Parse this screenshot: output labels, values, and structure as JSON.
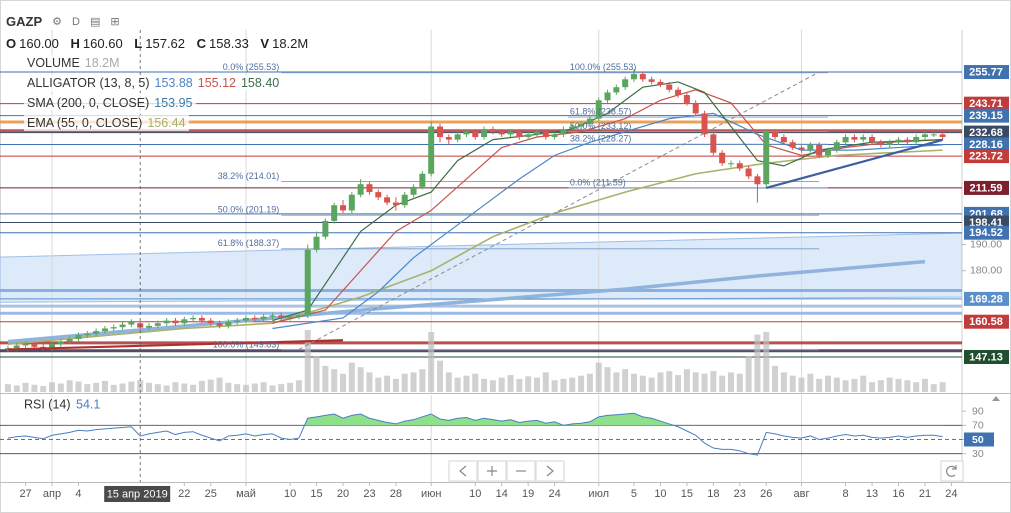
{
  "header": {
    "symbol": "GAZP",
    "interval": "D"
  },
  "legend": {
    "ohlc": [
      {
        "key": "O",
        "value": "160.00"
      },
      {
        "key": "H",
        "value": "160.60"
      },
      {
        "key": "L",
        "value": "157.62"
      },
      {
        "key": "C",
        "value": "158.33"
      },
      {
        "key": "V",
        "value": "18.2M"
      }
    ],
    "indicators": [
      {
        "name": "VOLUME",
        "values": [
          "18.2M"
        ]
      },
      {
        "name": "ALLIGATOR (13, 8, 5)",
        "values": [
          "153.88",
          "155.12",
          "158.40"
        ]
      },
      {
        "name": "SMA (200, 0, CLOSE)",
        "values": [
          "153.95"
        ]
      },
      {
        "name": "EMA (55, 0, CLOSE)",
        "values": [
          "156.44"
        ]
      }
    ]
  },
  "chart_data": [
    {
      "type": "candlestick",
      "up_color": "#5aa65e",
      "down_color": "#d9534f",
      "volume_color": "#bdbdbd",
      "xlim": [
        -0.9,
        108.2
      ],
      "ylim": [
        133.4,
        271.8
      ],
      "yticks": [
        {
          "value": 190,
          "label": "190.00"
        },
        {
          "value": 180,
          "label": "180.00"
        }
      ],
      "xticks": [
        {
          "value": 2,
          "label": "27"
        },
        {
          "value": 5,
          "label": "апр"
        },
        {
          "value": 8,
          "label": "4"
        },
        {
          "value": 20,
          "label": "22"
        },
        {
          "value": 23,
          "label": "25"
        },
        {
          "value": 27,
          "label": "май"
        },
        {
          "value": 32,
          "label": "10"
        },
        {
          "value": 35,
          "label": "15"
        },
        {
          "value": 38,
          "label": "20"
        },
        {
          "value": 41,
          "label": "23"
        },
        {
          "value": 44,
          "label": "28"
        },
        {
          "value": 48,
          "label": "июн"
        },
        {
          "value": 53,
          "label": "10"
        },
        {
          "value": 56,
          "label": "14"
        },
        {
          "value": 59,
          "label": "19"
        },
        {
          "value": 62,
          "label": "24"
        },
        {
          "value": 67,
          "label": "июл"
        },
        {
          "value": 71,
          "label": "5"
        },
        {
          "value": 74,
          "label": "10"
        },
        {
          "value": 77,
          "label": "15"
        },
        {
          "value": 80,
          "label": "18"
        },
        {
          "value": 83,
          "label": "23"
        },
        {
          "value": 86,
          "label": "26"
        },
        {
          "value": 90,
          "label": "авг"
        },
        {
          "value": 95,
          "label": "8"
        },
        {
          "value": 98,
          "label": "13"
        },
        {
          "value": 101,
          "label": "16"
        },
        {
          "value": 104,
          "label": "21"
        },
        {
          "value": 107,
          "label": "24"
        }
      ],
      "crosshair": {
        "x": 15,
        "label": "15 апр 2019"
      },
      "open": [
        150,
        150.5,
        151.5,
        152,
        151,
        150.5,
        152,
        153,
        154,
        155.5,
        156,
        157,
        158,
        158.5,
        159.5,
        160,
        158.33,
        159,
        160,
        161,
        160,
        161.5,
        162,
        161,
        160,
        159,
        160.5,
        161,
        162,
        161.5,
        162.5,
        163,
        162,
        162.5,
        163,
        188,
        193,
        199,
        205,
        203,
        209,
        213,
        210,
        208,
        206,
        205,
        209,
        212,
        217,
        235,
        231,
        230,
        232,
        233,
        231,
        234,
        233,
        232,
        233,
        231,
        232,
        233,
        231,
        232,
        234,
        235,
        236,
        238,
        245,
        248,
        250,
        253,
        255,
        253,
        252,
        251,
        249,
        247,
        244,
        240,
        232,
        225,
        221,
        221,
        219,
        216,
        213,
        233,
        231,
        229,
        227,
        226,
        228,
        224,
        226,
        229,
        231,
        230,
        231,
        229,
        228,
        229,
        230,
        229,
        231,
        232,
        232
      ],
      "high": [
        151.5,
        152.5,
        153,
        153,
        152,
        153,
        154,
        155,
        156.5,
        157,
        158,
        159,
        159.5,
        160.5,
        161.5,
        160.6,
        160,
        161,
        162,
        162,
        162.5,
        163,
        163,
        162,
        161,
        161.5,
        162,
        163,
        163,
        163.5,
        164,
        164,
        163.5,
        164,
        190,
        195,
        200,
        206,
        207,
        210,
        215,
        214,
        211,
        209,
        208,
        210,
        213,
        218,
        237,
        236,
        232,
        233,
        234,
        234,
        235,
        235,
        234,
        234,
        234,
        233,
        234,
        234,
        233,
        235,
        236,
        237,
        239,
        246,
        249,
        251,
        254,
        257,
        256,
        254,
        253,
        252,
        250,
        248,
        245,
        241,
        233,
        226,
        222,
        222,
        220,
        217,
        234,
        234,
        232,
        230,
        228,
        229,
        229,
        227,
        230,
        232,
        232,
        232,
        232,
        230,
        230,
        231,
        231,
        232,
        233,
        233,
        233
      ],
      "low": [
        149,
        149.5,
        150.5,
        150,
        149.5,
        149.5,
        151,
        152,
        153,
        154.5,
        155,
        156,
        157,
        157.5,
        158.5,
        157.62,
        157.3,
        158,
        159,
        159,
        159,
        160.5,
        160,
        159,
        158,
        158,
        159.5,
        160,
        160.5,
        160.5,
        161.5,
        161,
        161,
        161.5,
        162,
        187,
        192,
        198,
        202,
        202,
        208,
        209,
        207,
        205,
        203,
        204,
        208,
        211,
        216,
        229,
        228,
        229,
        231,
        230,
        230,
        232,
        231,
        231,
        230,
        230,
        231,
        230,
        230,
        231,
        233,
        234,
        235,
        237,
        244,
        247,
        249,
        252,
        252,
        251,
        250,
        248,
        246,
        243,
        239,
        231,
        224,
        220,
        219.5,
        218,
        215,
        206,
        212,
        230,
        228,
        226,
        225,
        225,
        223,
        223,
        225,
        228,
        229,
        229,
        228,
        227,
        227,
        228,
        228,
        228,
        230,
        231,
        230
      ],
      "close": [
        150.5,
        151.5,
        152,
        151,
        150.5,
        152,
        153,
        154,
        155.5,
        156,
        157,
        158,
        158.5,
        159.5,
        160.5,
        158.33,
        159,
        160,
        161,
        160,
        161.5,
        162,
        161,
        160,
        159,
        160.5,
        161,
        162,
        161.5,
        162.5,
        163,
        162,
        162.5,
        163,
        188,
        193,
        199,
        205,
        203,
        209,
        213,
        210,
        208,
        206,
        205,
        209,
        212,
        217,
        235,
        231,
        230,
        232,
        233,
        231,
        234,
        233,
        232,
        233,
        231,
        232,
        233,
        231,
        232,
        234,
        235,
        236,
        238,
        245,
        248,
        250,
        253,
        255,
        253,
        252,
        251,
        249,
        247,
        244,
        240,
        232,
        225,
        221,
        221,
        219,
        216,
        213,
        233,
        231,
        229,
        227,
        226,
        228,
        224,
        226,
        229,
        231,
        230,
        231,
        229,
        228,
        229,
        230,
        229,
        231,
        232,
        232,
        231
      ],
      "volume": [
        12,
        10,
        14,
        11,
        9,
        15,
        13,
        18,
        16,
        12,
        14,
        17,
        11,
        13,
        16,
        18,
        14,
        12,
        10,
        15,
        13,
        11,
        17,
        19,
        22,
        14,
        12,
        11,
        13,
        15,
        10,
        12,
        14,
        18,
        95,
        55,
        40,
        35,
        28,
        45,
        38,
        30,
        22,
        25,
        20,
        28,
        30,
        35,
        92,
        48,
        30,
        22,
        25,
        28,
        20,
        18,
        22,
        26,
        20,
        24,
        22,
        30,
        18,
        20,
        22,
        25,
        28,
        45,
        38,
        30,
        35,
        28,
        25,
        22,
        30,
        32,
        26,
        35,
        30,
        28,
        32,
        25,
        30,
        28,
        55,
        88,
        92,
        40,
        30,
        25,
        22,
        28,
        20,
        25,
        22,
        18,
        20,
        25,
        15,
        18,
        22,
        20,
        18,
        15,
        20,
        12,
        15
      ],
      "channel": {
        "x": [
          -0.9,
          108.2
        ],
        "upper": [
          185.2,
          194.4
        ],
        "lower": [
          168,
          170
        ],
        "color": "#d3e5f8"
      },
      "lines": [
        {
          "color": "#8fb3dc",
          "width": 3.5,
          "x": [
            0,
            27,
            40,
            55,
            70,
            85,
            104
          ],
          "values": [
            153,
            161,
            165,
            169,
            173,
            178,
            183.5
          ]
        },
        {
          "color": "#a8b26a",
          "width": 1.6,
          "x": [
            0,
            10,
            20,
            30,
            40,
            48,
            55,
            62,
            70,
            78,
            86,
            94,
            106
          ],
          "values": [
            152,
            155,
            158,
            160,
            170,
            180,
            193,
            202,
            210,
            217,
            221,
            224,
            226
          ]
        },
        {
          "color": "#4a86c8",
          "width": 1.2,
          "x": [
            30,
            38,
            42,
            46,
            50,
            54,
            58,
            62,
            66,
            70,
            75,
            80,
            85,
            90,
            96,
            106
          ],
          "values": [
            158,
            162,
            172,
            185,
            195,
            205,
            215,
            224,
            229,
            233,
            238,
            240,
            232,
            226,
            226,
            228
          ]
        },
        {
          "color": "#c9534f",
          "width": 1.2,
          "x": [
            30,
            36,
            40,
            44,
            48,
            52,
            56,
            60,
            65,
            70,
            74,
            78,
            82,
            86,
            90,
            95,
            100,
            106
          ],
          "values": [
            160,
            165,
            180,
            195,
            203,
            215,
            227,
            231,
            233,
            238,
            245,
            249,
            244,
            228,
            224,
            227,
            229,
            230
          ]
        },
        {
          "color": "#3c6e47",
          "width": 1.2,
          "x": [
            30,
            34,
            37,
            40,
            44,
            48,
            51,
            55,
            60,
            64,
            68,
            72,
            76,
            79,
            82,
            85,
            88,
            92,
            98,
            106
          ],
          "values": [
            161,
            165,
            180,
            195,
            205,
            210,
            222,
            230,
            232,
            234,
            240,
            250,
            252,
            248,
            235,
            222,
            220,
            226,
            229,
            230
          ]
        }
      ],
      "bands": [
        {
          "value": 236.7,
          "color": "#e8913a"
        },
        {
          "value": 233.4,
          "color": "#b03a3a"
        },
        {
          "value": 172.5,
          "color": "#7aa7da"
        },
        {
          "value": 166.5,
          "color": "#9db8db"
        },
        {
          "value": 163.8,
          "color": "#8aaee0"
        },
        {
          "value": 152.5,
          "color": "#a83232"
        },
        {
          "value": 149.5,
          "color": "#3a2a4a"
        }
      ],
      "trend_lines": [
        {
          "x": [
            86,
            106
          ],
          "y": [
            211.6,
            229.9
          ],
          "color": "#3c5fa0",
          "width": 2.2
        },
        {
          "x": [
            0,
            38
          ],
          "y": [
            150,
            153.5
          ],
          "color": "#b03030",
          "width": 2.2
        },
        {
          "x": [
            33,
            92
          ],
          "y": [
            150,
            255.77
          ],
          "color": "#8a8a8a",
          "width": 1,
          "dash": true
        }
      ],
      "fibs": [
        {
          "x": [
            31,
            92
          ],
          "anchor": "end",
          "levels": [
            {
              "value": 255.53,
              "label": "0.0% (255.53)"
            },
            {
              "value": 214.01,
              "label": "38.2% (214.01)"
            },
            {
              "value": 201.19,
              "label": "50.0% (201.19)"
            },
            {
              "value": 188.37,
              "label": "61.8% (188.37)"
            },
            {
              "value": 149.83,
              "label": "100.0% (149.83)"
            }
          ]
        },
        {
          "x": [
            63.5,
            93
          ],
          "anchor": "start",
          "levels": [
            {
              "value": 255.53,
              "label": "100.0% (255.53)"
            },
            {
              "value": 238.57,
              "label": "61.8% (238.57)"
            },
            {
              "value": 233.12,
              "label": "50.0% (233.12)"
            },
            {
              "value": 228.27,
              "label": "38.2% (228.27)"
            },
            {
              "value": 211.59,
              "label": "0.0% (211.59)"
            }
          ]
        }
      ],
      "levels": [
        {
          "value": 255.77,
          "color": "#3f72af"
        },
        {
          "value": 243.71,
          "color": "#c23b3b"
        },
        {
          "value": 239.15,
          "color": "#3f72af"
        },
        {
          "value": 232.68,
          "color": "#3a4a63"
        },
        {
          "value": 228.16,
          "color": "#3f72af"
        },
        {
          "value": 223.72,
          "color": "#c23b3b"
        },
        {
          "value": 211.59,
          "color": "#7d1f2d"
        },
        {
          "value": 201.68,
          "color": "#3f72af"
        },
        {
          "value": 198.41,
          "color": "#3a4a63"
        },
        {
          "value": 194.52,
          "color": "#3f72af"
        },
        {
          "value": 169.28,
          "color": "#5a8fcc"
        },
        {
          "value": 160.58,
          "color": "#c23b3b"
        },
        {
          "value": 147.13,
          "color": "#1f4f2f"
        }
      ]
    },
    {
      "type": "line",
      "title": "RSI (14)",
      "legend_value": "54.1",
      "color": "#4a7fc0",
      "fill_color": "#8ee08a",
      "ylim": [
        -10,
        110
      ],
      "yticks": [
        90,
        70,
        50,
        30
      ],
      "levels": [
        {
          "value": 70
        },
        {
          "value": 50,
          "dash": true
        },
        {
          "value": 30
        }
      ],
      "values": [
        52,
        54,
        55,
        53,
        51,
        56,
        58,
        60,
        63,
        62,
        64,
        65,
        66,
        67,
        68,
        55,
        58,
        60,
        62,
        57,
        60,
        61,
        56,
        52,
        48,
        55,
        56,
        58,
        55,
        57,
        58,
        52,
        50,
        52,
        80,
        82,
        84,
        86,
        80,
        84,
        86,
        80,
        77,
        74,
        72,
        76,
        78,
        82,
        86,
        79,
        77,
        80,
        81,
        77,
        80,
        78,
        76,
        78,
        74,
        76,
        77,
        73,
        75,
        70,
        72,
        73,
        75,
        82,
        84,
        85,
        86,
        87,
        82,
        80,
        76,
        72,
        68,
        62,
        56,
        45,
        38,
        36,
        36,
        34,
        30,
        28,
        60,
        58,
        55,
        53,
        52,
        55,
        50,
        52,
        55,
        57,
        55,
        56,
        53,
        52,
        53,
        55,
        53,
        55,
        56,
        56,
        54
      ]
    }
  ]
}
